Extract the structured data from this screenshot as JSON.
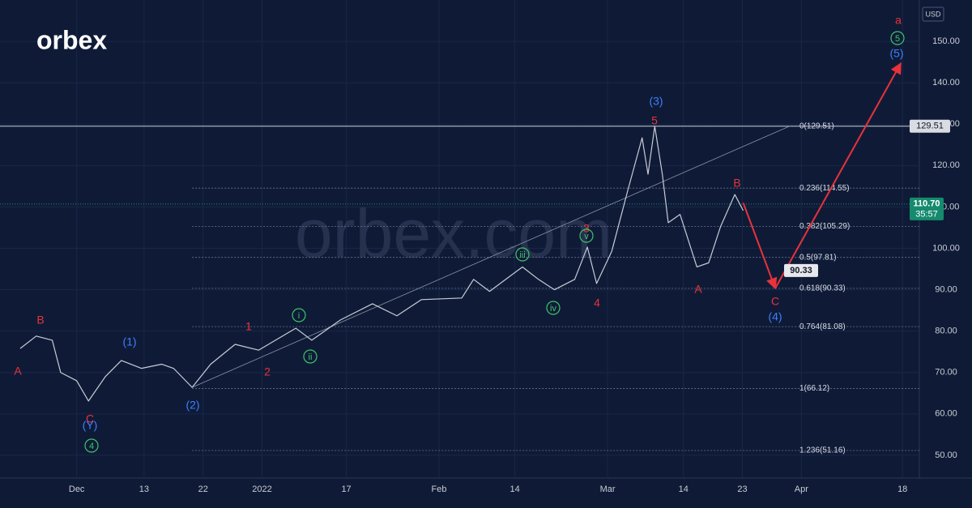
{
  "chart_data": {
    "type": "line",
    "logo": "orbex",
    "watermark": "orbex.com",
    "currency": "USD",
    "color": "#c8ccd6",
    "x": [
      -6.7,
      -4.8,
      -2.9,
      -1.9,
      0,
      1.4,
      3.4,
      5.3,
      7.7,
      10.1,
      11.5,
      13.7,
      15.9,
      18.8,
      21.6,
      26,
      27.9,
      31.3,
      35.1,
      38,
      40.9,
      45.7,
      47.1,
      49,
      52.9,
      54.8,
      56.7,
      59.1,
      60.6,
      61.7,
      63.5,
      65.4,
      67.1,
      67.8,
      68.6,
      69.5,
      70.2,
      71.6,
      73.6,
      75,
      76.4,
      78.1,
      79.1
    ],
    "values": [
      75.8,
      78.8,
      77.8,
      70,
      68,
      63.1,
      69,
      72.9,
      71,
      72,
      71,
      66.4,
      72,
      76.8,
      75.4,
      80.7,
      77.8,
      82.7,
      86.6,
      83.7,
      87.6,
      88,
      92.5,
      89.6,
      95.5,
      92.5,
      90,
      92.5,
      100.3,
      91.5,
      99.3,
      114,
      126.7,
      117.9,
      129.5,
      117.9,
      106.2,
      108.2,
      95.5,
      96.5,
      105.2,
      113,
      109.1
    ],
    "xlim": [
      -9.1,
      100
    ],
    "xticks": [
      {
        "value": 0,
        "label": "Dec"
      },
      {
        "value": 8,
        "label": "13"
      },
      {
        "value": 15,
        "label": "22"
      },
      {
        "value": 22,
        "label": "2022"
      },
      {
        "value": 32,
        "label": "17"
      },
      {
        "value": 43,
        "label": "Feb"
      },
      {
        "value": 52,
        "label": "14"
      },
      {
        "value": 63,
        "label": "Mar"
      },
      {
        "value": 72,
        "label": "14"
      },
      {
        "value": 79,
        "label": "23"
      },
      {
        "value": 86,
        "label": "Apr"
      },
      {
        "value": 98,
        "label": "18"
      }
    ],
    "ylim": [
      44.5,
      160
    ],
    "yticks": [
      {
        "value": 50,
        "label": "50.00"
      },
      {
        "value": 60,
        "label": "60.00"
      },
      {
        "value": 70,
        "label": "70.00"
      },
      {
        "value": 80,
        "label": "80.00"
      },
      {
        "value": 90,
        "label": "90.00"
      },
      {
        "value": 100,
        "label": "100.00"
      },
      {
        "value": 110,
        "label": "110.00"
      },
      {
        "value": 120,
        "label": "120.00"
      },
      {
        "value": 130,
        "label": "130.00"
      },
      {
        "value": 140,
        "label": "140.00"
      },
      {
        "value": 150,
        "label": "150.00"
      }
    ],
    "grid": true,
    "high_line": {
      "value": 129.51,
      "label": "129.51"
    },
    "last_price": {
      "value": 110.7,
      "label": "110.70"
    },
    "countdown": "35:57",
    "fib_levels": [
      {
        "value": 129.51,
        "label": "0(129.51)"
      },
      {
        "value": 114.55,
        "label": "0.236(114.55)"
      },
      {
        "value": 105.29,
        "label": "0.382(105.29)"
      },
      {
        "value": 97.81,
        "label": "0.5(97.81)"
      },
      {
        "value": 90.33,
        "label": "0.618(90.33)"
      },
      {
        "value": 81.08,
        "label": "0.764(81.08)"
      },
      {
        "value": 66.12,
        "label": "1(66.12)"
      },
      {
        "value": 51.16,
        "label": "1.236(51.16)"
      }
    ],
    "trendline": {
      "x": [
        13.7,
        84.6
      ],
      "values": [
        66.4,
        129.51
      ]
    },
    "projection": {
      "color": "#e8323c",
      "x": [
        79.1,
        82.9,
        97.8
      ],
      "values": [
        111,
        90.33,
        144.7
      ],
      "target_label": {
        "value": 90.33,
        "label": "90.33"
      }
    },
    "wave_labels": [
      {
        "text": "a",
        "color": "#e8323c",
        "circled": false
      },
      {
        "text": "5",
        "color": "#3ec46d",
        "circled": true
      },
      {
        "text": "(5)",
        "color": "#3f7fff",
        "circled": false
      },
      {
        "text": "(3)",
        "color": "#3f7fff",
        "circled": false
      },
      {
        "text": "5",
        "color": "#e8323c",
        "circled": false
      },
      {
        "text": "B",
        "color": "#e8323c",
        "circled": false
      },
      {
        "text": "3",
        "color": "#e8323c",
        "circled": false
      },
      {
        "text": "v",
        "color": "#3ec46d",
        "circled": true
      },
      {
        "text": "iii",
        "color": "#3ec46d",
        "circled": true
      },
      {
        "text": "iv",
        "color": "#3ec46d",
        "circled": true
      },
      {
        "text": "4",
        "color": "#e8323c",
        "circled": false
      },
      {
        "text": "A",
        "color": "#e8323c",
        "circled": false
      },
      {
        "text": "C",
        "color": "#e8323c",
        "circled": false
      },
      {
        "text": "(4)",
        "color": "#3f7fff",
        "circled": false
      },
      {
        "text": "i",
        "color": "#3ec46d",
        "circled": true
      },
      {
        "text": "ii",
        "color": "#3ec46d",
        "circled": true
      },
      {
        "text": "1",
        "color": "#e8323c",
        "circled": false
      },
      {
        "text": "2",
        "color": "#e8323c",
        "circled": false
      },
      {
        "text": "(1)",
        "color": "#3f7fff",
        "circled": false
      },
      {
        "text": "(2)",
        "color": "#3f7fff",
        "circled": false
      },
      {
        "text": "B",
        "color": "#e8323c",
        "circled": false
      },
      {
        "text": "C",
        "color": "#e8323c",
        "circled": false
      },
      {
        "text": "(Y)",
        "color": "#3f7fff",
        "circled": false
      },
      {
        "text": "4",
        "color": "#3ec46d",
        "circled": true
      },
      {
        "text": "A",
        "color": "#e8323c",
        "circled": false
      }
    ]
  }
}
